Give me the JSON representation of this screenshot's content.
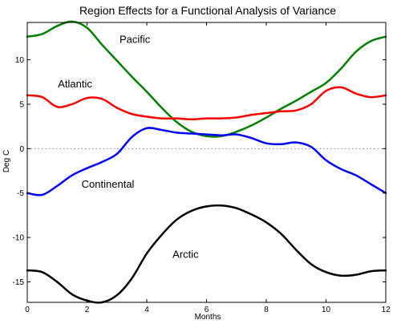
{
  "chart_data": {
    "type": "line",
    "title": "Region Effects for a Functional Analysis of Variance",
    "xlabel": "Months",
    "ylabel": "Deg C",
    "xlim": [
      0,
      12
    ],
    "ylim": [
      -17.3,
      14.2
    ],
    "xticks": [
      0,
      2,
      4,
      6,
      8,
      10,
      12
    ],
    "yticks": [
      -15,
      -10,
      -5,
      0,
      5,
      10
    ],
    "grid": false,
    "zero_line": true,
    "series": [
      {
        "name": "Pacific",
        "color": "#008000",
        "x": [
          0,
          0.5,
          1,
          1.5,
          2,
          2.5,
          3,
          3.5,
          4,
          4.5,
          5,
          5.5,
          6,
          6.5,
          7,
          7.5,
          8,
          8.5,
          9,
          9.5,
          10,
          10.5,
          11,
          11.5,
          12
        ],
        "y": [
          12.6,
          12.9,
          13.8,
          14.3,
          13.6,
          11.7,
          9.9,
          8.1,
          6.4,
          4.6,
          3.0,
          1.9,
          1.4,
          1.4,
          1.9,
          2.6,
          3.5,
          4.5,
          5.4,
          6.4,
          7.4,
          9.0,
          10.9,
          12.1,
          12.6
        ]
      },
      {
        "name": "Atlantic",
        "color": "#ff0000",
        "x": [
          0,
          0.5,
          1,
          1.5,
          2,
          2.5,
          3,
          3.5,
          4,
          4.5,
          5,
          5.5,
          6,
          6.5,
          7,
          7.5,
          8,
          8.5,
          9,
          9.5,
          10,
          10.5,
          11,
          11.5,
          12
        ],
        "y": [
          6.0,
          5.8,
          4.7,
          5.0,
          5.7,
          5.6,
          4.6,
          3.9,
          3.6,
          3.4,
          3.4,
          3.3,
          3.4,
          3.4,
          3.5,
          3.8,
          4.0,
          4.2,
          4.3,
          5.0,
          6.5,
          6.9,
          6.2,
          5.8,
          6.0
        ]
      },
      {
        "name": "Continental",
        "color": "#0000ff",
        "x": [
          0,
          0.5,
          1,
          1.5,
          2,
          2.5,
          3,
          3.5,
          4,
          4.5,
          5,
          5.5,
          6,
          6.5,
          7,
          7.5,
          8,
          8.5,
          9,
          9.5,
          10,
          10.5,
          11,
          11.5,
          12
        ],
        "y": [
          -5.0,
          -5.2,
          -4.2,
          -3.0,
          -2.2,
          -1.5,
          -0.6,
          1.3,
          2.3,
          2.1,
          1.8,
          1.7,
          1.6,
          1.5,
          1.6,
          1.2,
          0.6,
          0.5,
          0.7,
          0.2,
          -1.3,
          -2.3,
          -3.0,
          -4.0,
          -5.0
        ]
      },
      {
        "name": "Arctic",
        "color": "#000000",
        "x": [
          0,
          0.5,
          1,
          1.5,
          2,
          2.5,
          3,
          3.5,
          4,
          4.5,
          5,
          5.5,
          6,
          6.5,
          7,
          7.5,
          8,
          8.5,
          9,
          9.5,
          10,
          10.5,
          11,
          11.5,
          12
        ],
        "y": [
          -13.7,
          -13.9,
          -15.0,
          -16.4,
          -17.1,
          -17.3,
          -16.5,
          -14.6,
          -11.8,
          -9.7,
          -8.0,
          -7.0,
          -6.5,
          -6.4,
          -6.7,
          -7.4,
          -8.3,
          -9.6,
          -11.4,
          -13.0,
          -13.9,
          -14.3,
          -14.2,
          -13.8,
          -13.7
        ]
      }
    ],
    "annotations": [
      {
        "text": "Pacific",
        "x": 3.6,
        "y": 11.9
      },
      {
        "text": "Atlantic",
        "x": 1.6,
        "y": 6.9
      },
      {
        "text": "Continental",
        "x": 2.7,
        "y": -4.4
      },
      {
        "text": "Arctic",
        "x": 5.3,
        "y": -12.3
      }
    ]
  }
}
